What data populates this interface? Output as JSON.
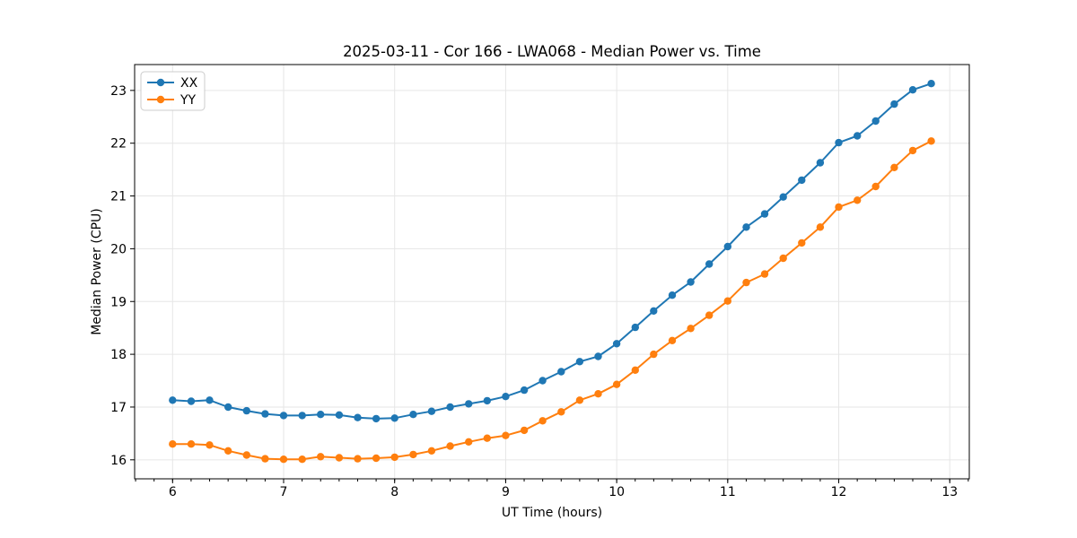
{
  "chart_data": {
    "type": "line",
    "title": "2025-03-11 - Cor 166 - LWA068 - Median Power vs. Time",
    "xlabel": "UT Time (hours)",
    "ylabel": "Median Power (CPU)",
    "xlim": [
      5.658,
      13.176
    ],
    "ylim": [
      15.64,
      23.49
    ],
    "xticks": [
      6,
      7,
      8,
      9,
      10,
      11,
      12,
      13
    ],
    "yticks": [
      16,
      17,
      18,
      19,
      20,
      21,
      22,
      23
    ],
    "x_minor_interval": 0.166667,
    "grid": true,
    "legend_position": "upper left",
    "x": [
      6.0,
      6.167,
      6.333,
      6.5,
      6.667,
      6.833,
      7.0,
      7.167,
      7.333,
      7.5,
      7.667,
      7.833,
      8.0,
      8.167,
      8.333,
      8.5,
      8.667,
      8.833,
      9.0,
      9.167,
      9.333,
      9.5,
      9.667,
      9.833,
      10.0,
      10.167,
      10.333,
      10.5,
      10.667,
      10.833,
      11.0,
      11.167,
      11.333,
      11.5,
      11.667,
      11.833,
      12.0,
      12.167,
      12.333,
      12.5,
      12.667,
      12.833
    ],
    "series": [
      {
        "name": "XX",
        "color": "#1f77b4",
        "values": [
          17.13,
          17.11,
          17.13,
          17.0,
          16.93,
          16.87,
          16.84,
          16.84,
          16.86,
          16.85,
          16.8,
          16.78,
          16.79,
          16.86,
          16.92,
          17.0,
          17.06,
          17.12,
          17.2,
          17.32,
          17.5,
          17.67,
          17.86,
          17.96,
          18.2,
          18.51,
          18.82,
          19.12,
          19.37,
          19.71,
          20.04,
          20.41,
          20.66,
          20.98,
          21.3,
          21.63,
          22.01,
          22.14,
          22.42,
          22.74,
          23.01,
          23.13
        ]
      },
      {
        "name": "YY",
        "color": "#ff7f0e",
        "values": [
          16.3,
          16.3,
          16.28,
          16.17,
          16.09,
          16.02,
          16.01,
          16.01,
          16.06,
          16.04,
          16.02,
          16.03,
          16.05,
          16.1,
          16.17,
          16.26,
          16.34,
          16.41,
          16.46,
          16.56,
          16.74,
          16.91,
          17.13,
          17.25,
          17.43,
          17.7,
          18.0,
          18.26,
          18.49,
          18.74,
          19.01,
          19.36,
          19.52,
          19.82,
          20.11,
          20.41,
          20.79,
          20.92,
          21.18,
          21.54,
          21.86,
          22.04
        ]
      }
    ]
  },
  "colors": {
    "background": "#ffffff",
    "grid": "#e6e6e6",
    "spine": "#000000",
    "tick": "#000000",
    "legend_border": "#cccccc",
    "legend_background": "#ffffff"
  }
}
